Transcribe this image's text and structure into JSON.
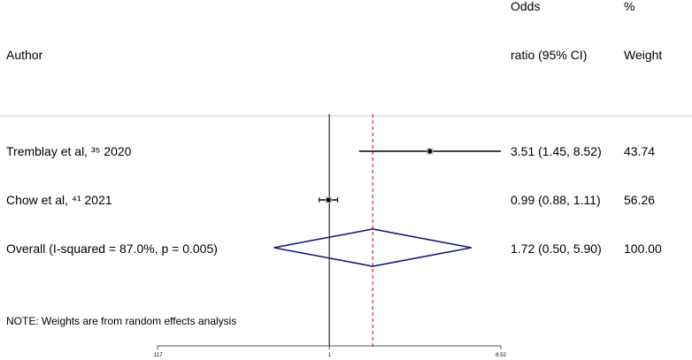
{
  "headers": {
    "author": "Author",
    "or_line1": "Odds",
    "or_line2": "ratio (95% CI)",
    "wt_line1": "%",
    "wt_line2": "Weight"
  },
  "note": "NOTE: Weights are from random effects analysis",
  "chart_data": {
    "type": "forest",
    "studies": [
      {
        "label": "Tremblay et al, ³⁵ 2020",
        "or": 3.51,
        "lo": 1.45,
        "hi": 8.52,
        "ci_text": "3.51 (1.45, 8.52)",
        "weight": "43.74"
      },
      {
        "label": "Chow et al, ⁴¹ 2021",
        "or": 0.99,
        "lo": 0.88,
        "hi": 1.11,
        "ci_text": "0.99 (0.88, 1.11)",
        "weight": "56.26"
      }
    ],
    "overall": {
      "label": "Overall  (I-squared = 87.0%, p = 0.005)",
      "or": 1.72,
      "lo": 0.5,
      "hi": 5.9,
      "ci_text": "1.72 (0.50, 5.90)",
      "weight": "100.00"
    },
    "x_scale": "log",
    "x_ticks": [
      {
        "value": 0.117,
        "label": ".117"
      },
      {
        "value": 1,
        "label": "1"
      },
      {
        "value": 8.52,
        "label": "8.52"
      }
    ],
    "null_line": 1,
    "colors": {
      "overall_diamond": "#1a1a7a",
      "overall_line": "#cc0000",
      "marks": "#000000"
    }
  }
}
